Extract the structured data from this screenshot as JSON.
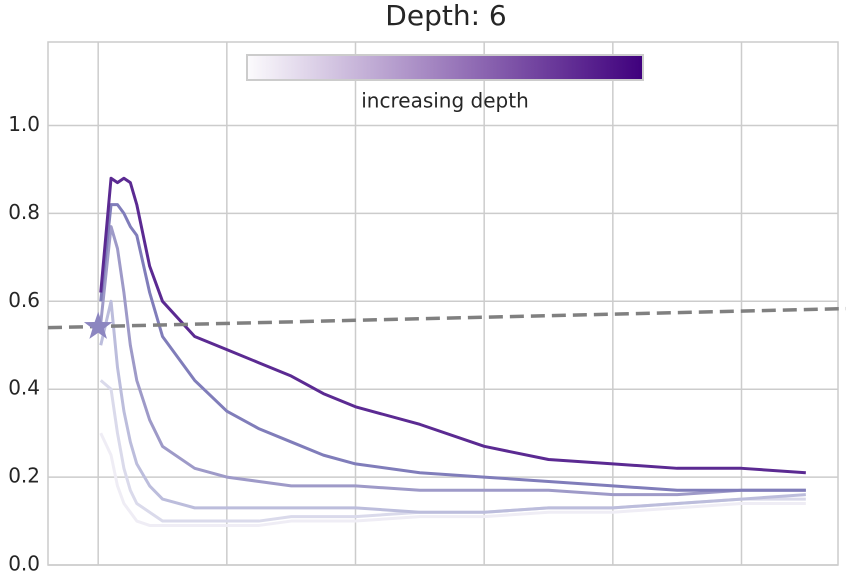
{
  "chart_data": {
    "type": "line",
    "title": "Depth: 6",
    "x": [
      0.02,
      0.1,
      0.15,
      0.2,
      0.25,
      0.3,
      0.4,
      0.5,
      0.75,
      1,
      1.25,
      1.5,
      1.75,
      2,
      2.5,
      3,
      3.5,
      4,
      4.5,
      5,
      5.5
    ],
    "series": [
      {
        "color": "#efedf5",
        "values": [
          0.3,
          0.25,
          0.18,
          0.14,
          0.12,
          0.1,
          0.09,
          0.09,
          0.09,
          0.09,
          0.09,
          0.1,
          0.1,
          0.1,
          0.11,
          0.11,
          0.12,
          0.12,
          0.13,
          0.14,
          0.14
        ]
      },
      {
        "color": "#dadaeb",
        "values": [
          0.42,
          0.4,
          0.3,
          0.22,
          0.17,
          0.14,
          0.12,
          0.1,
          0.1,
          0.1,
          0.1,
          0.11,
          0.11,
          0.11,
          0.12,
          0.12,
          0.13,
          0.13,
          0.14,
          0.15,
          0.15
        ]
      },
      {
        "color": "#bcbddc",
        "values": [
          0.5,
          0.6,
          0.45,
          0.35,
          0.28,
          0.23,
          0.18,
          0.15,
          0.13,
          0.13,
          0.13,
          0.13,
          0.13,
          0.13,
          0.12,
          0.12,
          0.13,
          0.13,
          0.14,
          0.15,
          0.16
        ]
      },
      {
        "color": "#9e9ac8",
        "values": [
          0.55,
          0.77,
          0.72,
          0.62,
          0.5,
          0.42,
          0.33,
          0.27,
          0.22,
          0.2,
          0.19,
          0.18,
          0.18,
          0.18,
          0.17,
          0.17,
          0.17,
          0.16,
          0.16,
          0.17,
          0.17
        ]
      },
      {
        "color": "#807dba",
        "values": [
          0.6,
          0.82,
          0.82,
          0.8,
          0.77,
          0.75,
          0.62,
          0.52,
          0.42,
          0.35,
          0.31,
          0.28,
          0.25,
          0.23,
          0.21,
          0.2,
          0.19,
          0.18,
          0.17,
          0.17,
          0.17
        ]
      },
      {
        "color": "#5b2a92",
        "values": [
          0.62,
          0.88,
          0.87,
          0.88,
          0.87,
          0.82,
          0.68,
          0.6,
          0.52,
          0.49,
          0.46,
          0.43,
          0.39,
          0.36,
          0.32,
          0.27,
          0.24,
          0.23,
          0.22,
          0.22,
          0.21
        ]
      }
    ],
    "reference_line": {
      "color": "#808080",
      "x": [
        -0.39,
        5.75
      ],
      "values": [
        0.54,
        0.583
      ]
    },
    "marker": {
      "color": "#8c86c0",
      "x": 0,
      "value": 0.542
    },
    "colorbar": {
      "label": "increasing depth",
      "colors": [
        "#fcfbfd",
        "#3f007d"
      ]
    },
    "xlim": [
      -0.39,
      5.75
    ],
    "xticks": [
      0,
      1,
      2,
      3,
      4,
      5
    ],
    "ylim": [
      0,
      1.19
    ],
    "yticks": [
      {
        "value": 0,
        "label": "0.0"
      },
      0.2,
      0.4,
      0.6,
      0.8,
      {
        "value": 1,
        "label": "1.0"
      }
    ],
    "grid": true
  }
}
